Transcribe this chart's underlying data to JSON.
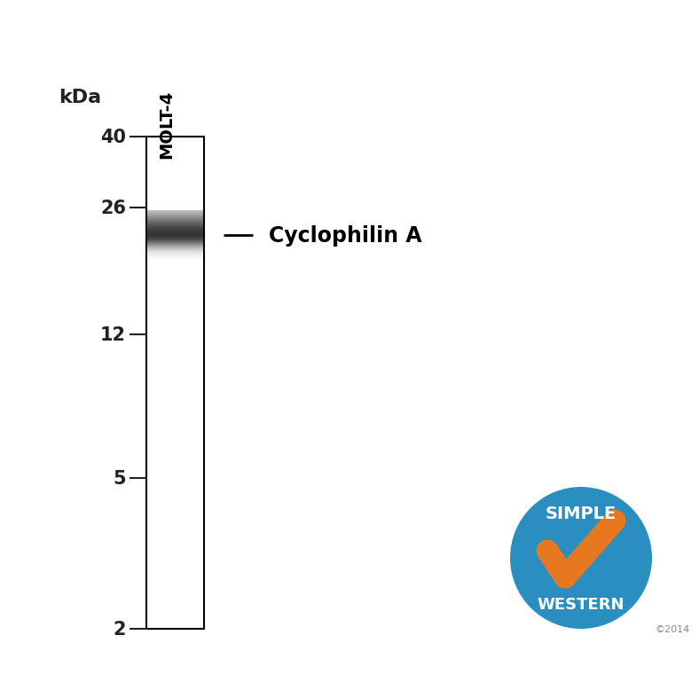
{
  "background_color": "#ffffff",
  "lane_label": "MOLT-4",
  "kda_label": "kDa",
  "y_ticks": [
    40,
    26,
    12,
    5,
    2
  ],
  "band_kda": 22,
  "band_label": "Cyclophilin A",
  "kda_min": 2,
  "kda_max": 40,
  "tick_color": "#222222",
  "simple_western_circle_color": "#2a8fc0",
  "simple_western_check_color": "#e87820",
  "logo_text_simple": "SIMPLE",
  "logo_text_western": "WESTERN",
  "logo_year": "©2014"
}
